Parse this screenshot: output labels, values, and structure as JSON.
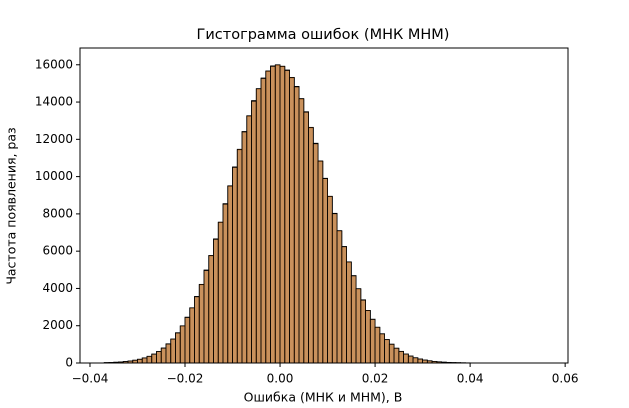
{
  "chart_data": {
    "type": "histogram",
    "title": "Гистограмма ошибок (МНК МНМ)",
    "x_label": "Ошибка (МНК и МНМ), В",
    "y_label": "Частота появления, раз",
    "bins": [
      -0.037,
      -0.036,
      -0.035,
      -0.034,
      -0.033,
      -0.032,
      -0.031,
      -0.03,
      -0.029,
      -0.028,
      -0.027,
      -0.026,
      -0.025,
      -0.024,
      -0.023,
      -0.022,
      -0.021,
      -0.02,
      -0.019,
      -0.018,
      -0.017,
      -0.016,
      -0.015,
      -0.014,
      -0.013,
      -0.012,
      -0.011,
      -0.01,
      -0.009,
      -0.008,
      -0.007,
      -0.006,
      -0.005,
      -0.004,
      -0.003,
      -0.002,
      -0.001,
      0,
      0.001,
      0.002,
      0.003,
      0.004,
      0.005,
      0.006,
      0.007,
      0.008,
      0.009,
      0.01,
      0.011,
      0.012,
      0.013,
      0.014,
      0.015,
      0.016,
      0.017,
      0.018,
      0.019,
      0.02,
      0.021,
      0.022,
      0.023,
      0.024,
      0.025,
      0.026,
      0.027,
      0.028,
      0.029,
      0.03,
      0.031,
      0.032,
      0.033,
      0.034,
      0.035,
      0.036,
      0.037,
      0.038,
      0.039,
      0.04,
      0.041,
      0.042,
      0.043,
      0.044,
      0.045,
      0.046,
      0.047,
      0.048,
      0.049,
      0.05,
      0.051,
      0.052,
      0.053,
      0.054,
      0.055
    ],
    "series": [
      {
        "color": "#1f77b4",
        "values": [
          21,
          26,
          41,
          53,
          80,
          104,
          150,
          198,
          275,
          356,
          480,
          612,
          805,
          1030,
          1275,
          1625,
          1980,
          2460,
          2950,
          3570,
          4200,
          4990,
          5750,
          6660,
          7540,
          8550,
          9480,
          10520,
          11440,
          12420,
          13240,
          14080,
          14700,
          15290,
          15640,
          15940,
          15980,
          15900,
          15720,
          15300,
          14840,
          14160,
          13480,
          12620,
          11790,
          10820,
          9910,
          8930,
          8030,
          7080,
          6250,
          5410,
          4690,
          3970,
          3390,
          2810,
          2350,
          1910,
          1570,
          1250,
          1010,
          790,
          625,
          478,
          372,
          279,
          214,
          156,
          118,
          84,
          63,
          43,
          33,
          21,
          16,
          11,
          7,
          5,
          3,
          2,
          2,
          1,
          1,
          1,
          0,
          0,
          0,
          0,
          0,
          0,
          1,
          0
        ]
      },
      {
        "color": "#ff7f0e",
        "values": [
          19,
          27,
          39,
          55,
          77,
          107,
          147,
          201,
          270,
          360,
          474,
          618,
          797,
          1019,
          1288,
          1611,
          1995,
          2443,
          2962,
          3554,
          4219,
          4960,
          5770,
          6637,
          7558,
          8522,
          9507,
          10496,
          11466,
          12397,
          13266,
          14046,
          14722,
          15267,
          15670,
          15917,
          16000,
          15923,
          15696,
          15323,
          14816,
          14188,
          13458,
          12643,
          11763,
          10841,
          9894,
          8945,
          8010,
          7102,
          6238,
          5426,
          4675,
          3990,
          3373,
          2822,
          2341,
          1922,
          1563,
          1259,
          1005,
          794,
          621,
          481,
          370,
          281,
          212,
          158,
          117,
          85,
          62,
          44,
          32,
          22,
          16,
          11,
          7,
          5,
          3,
          2,
          2,
          1,
          1,
          1,
          0,
          0,
          0,
          0,
          0,
          0,
          1,
          0
        ]
      }
    ],
    "xlim": [
      -0.0421,
      0.0606
    ],
    "ylim": [
      0,
      16900
    ],
    "xticks": [
      {
        "value": -0.04,
        "label": "−0.04"
      },
      {
        "value": -0.02,
        "label": "−0.02"
      },
      {
        "value": 0,
        "label": "0.00"
      },
      {
        "value": 0.02,
        "label": "0.02"
      },
      {
        "value": 0.04,
        "label": "0.04"
      },
      {
        "value": 0.06,
        "label": "0.06"
      }
    ],
    "yticks": [
      0,
      2000,
      4000,
      6000,
      8000,
      10000,
      12000,
      14000,
      16000
    ],
    "alpha": 0.6,
    "edge_color": "#000000"
  }
}
